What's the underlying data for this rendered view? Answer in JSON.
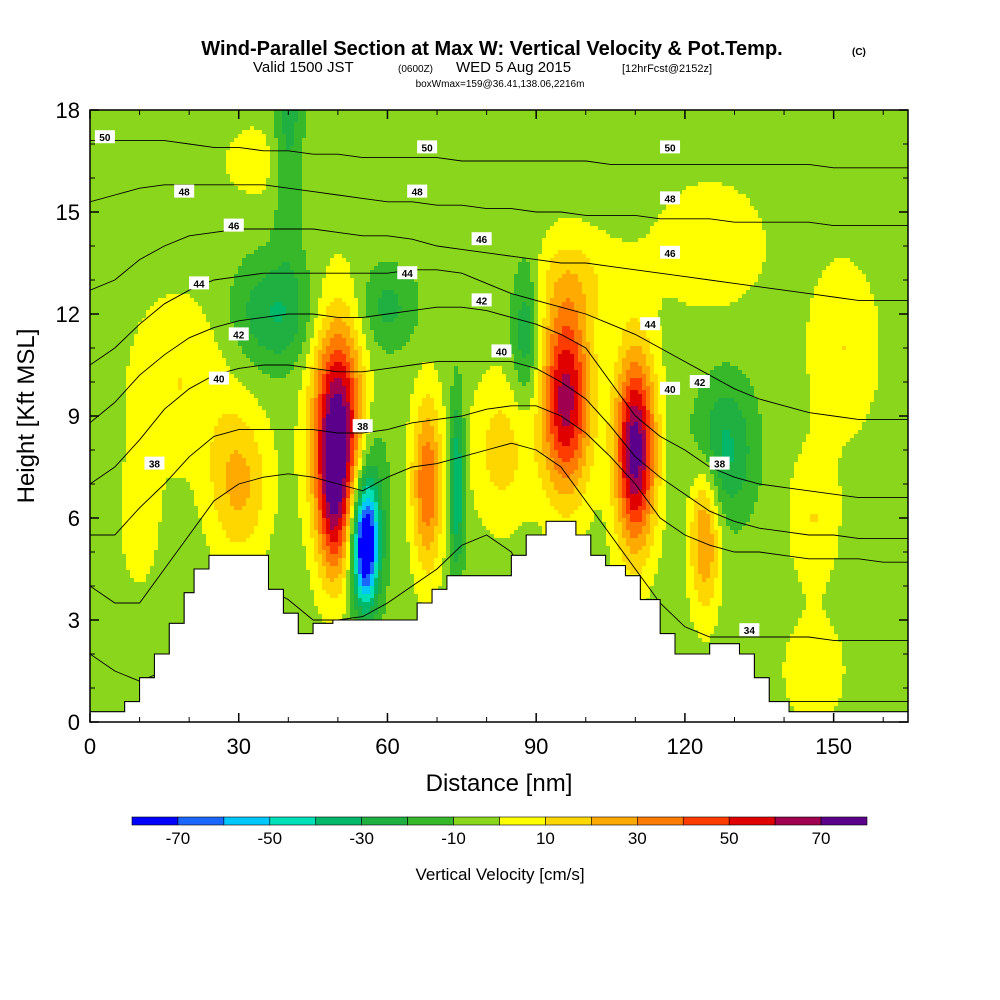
{
  "title": {
    "main": "Wind-Parallel Section at Max W: Vertical Velocity & Pot.Temp.",
    "copyright": "(C)",
    "valid_prefix": "Valid 1500 JST",
    "utc": "(0600Z)",
    "valid_date": "WED 5 Aug 2015",
    "forecast": "[12hrFcst@2152z]",
    "box": "boxWmax=159@36.41,138.06,2216m"
  },
  "chart_data": {
    "type": "heatmap",
    "xlabel": "Distance [nm]",
    "ylabel": "Height [Kft MSL]",
    "xlim": [
      0,
      165
    ],
    "ylim": [
      0,
      18
    ],
    "x_ticks": [
      "0",
      "30",
      "60",
      "90",
      "120",
      "150"
    ],
    "x_tick_values": [
      0,
      30,
      60,
      90,
      120,
      150
    ],
    "y_ticks": [
      "0",
      "3",
      "6",
      "9",
      "12",
      "15",
      "18"
    ],
    "y_tick_values": [
      0,
      3,
      6,
      9,
      12,
      15,
      18
    ],
    "background_value": -5,
    "colorbar": {
      "title": "Vertical Velocity [cm/s]",
      "bins": [
        -80,
        -70,
        -60,
        -50,
        -40,
        -30,
        -20,
        -10,
        0,
        10,
        20,
        30,
        40,
        50,
        60,
        70,
        80
      ],
      "colors": [
        "#0000ff",
        "#1a66ff",
        "#00c8ff",
        "#00e0b8",
        "#00b86a",
        "#1fb041",
        "#36b82a",
        "#8ad61c",
        "#ffff00",
        "#ffd700",
        "#ffaa00",
        "#ff7a00",
        "#ff3c00",
        "#e00000",
        "#a00050",
        "#5a008a"
      ],
      "labels": [
        "-70",
        "-50",
        "-30",
        "-10",
        "10",
        "30",
        "50",
        "70"
      ],
      "label_values": [
        -70,
        -50,
        -30,
        -10,
        10,
        30,
        50,
        70
      ]
    },
    "cells": [
      {
        "x": 50,
        "y": 8.5,
        "sx": 5,
        "sy": 3.2,
        "a": 85
      },
      {
        "x": 49,
        "y": 6.2,
        "sx": 3,
        "sy": 2.2,
        "a": 30
      },
      {
        "x": 55.5,
        "y": 5.2,
        "sx": 2.6,
        "sy": 1.8,
        "a": -78
      },
      {
        "x": 56,
        "y": 6.5,
        "sx": 4,
        "sy": 2.8,
        "a": -20
      },
      {
        "x": 68,
        "y": 7,
        "sx": 3,
        "sy": 2.5,
        "a": 45
      },
      {
        "x": 74,
        "y": 7,
        "sx": 1.5,
        "sy": 2.5,
        "a": -38
      },
      {
        "x": 96,
        "y": 9.5,
        "sx": 5,
        "sy": 2.8,
        "a": 70
      },
      {
        "x": 110,
        "y": 8,
        "sx": 4,
        "sy": 2.8,
        "a": 82
      },
      {
        "x": 124,
        "y": 5.5,
        "sx": 3,
        "sy": 2.2,
        "a": 38
      },
      {
        "x": 30,
        "y": 7,
        "sx": 6,
        "sy": 2.2,
        "a": 28
      },
      {
        "x": 37,
        "y": 12,
        "sx": 8,
        "sy": 1.6,
        "a": -25
      },
      {
        "x": 60,
        "y": 12.2,
        "sx": 6,
        "sy": 1.2,
        "a": -18
      },
      {
        "x": 83,
        "y": 8,
        "sx": 6,
        "sy": 2.2,
        "a": 20
      },
      {
        "x": 88,
        "y": 11.5,
        "sx": 3,
        "sy": 2.2,
        "a": -25
      },
      {
        "x": 128,
        "y": 8,
        "sx": 6,
        "sy": 2,
        "a": -28
      },
      {
        "x": 146,
        "y": 6,
        "sx": 5,
        "sy": 2,
        "a": 15
      },
      {
        "x": 152,
        "y": 11,
        "sx": 7,
        "sy": 2.5,
        "a": 15
      },
      {
        "x": 18,
        "y": 10,
        "sx": 10,
        "sy": 2.5,
        "a": 15
      },
      {
        "x": 125,
        "y": 14,
        "sx": 12,
        "sy": 2,
        "a": 12
      },
      {
        "x": 10,
        "y": 6,
        "sx": 4,
        "sy": 2,
        "a": 12
      },
      {
        "x": 40,
        "y": 18,
        "sx": 3,
        "sy": 4,
        "a": -22
      },
      {
        "x": 98,
        "y": 13,
        "sx": 10,
        "sy": 1.5,
        "a": 14
      },
      {
        "x": 146,
        "y": 1.5,
        "sx": 6,
        "sy": 1.5,
        "a": 14
      },
      {
        "x": 34,
        "y": 16.5,
        "sx": 8,
        "sy": 1.2,
        "a": 10
      }
    ],
    "terrain": [
      [
        0,
        0.3
      ],
      [
        7,
        0.3
      ],
      [
        7,
        0.6
      ],
      [
        10,
        0.6
      ],
      [
        10,
        1.3
      ],
      [
        13,
        1.3
      ],
      [
        13,
        2.0
      ],
      [
        16,
        2.0
      ],
      [
        16,
        2.9
      ],
      [
        19,
        2.9
      ],
      [
        19,
        3.8
      ],
      [
        21,
        3.8
      ],
      [
        21,
        4.5
      ],
      [
        24,
        4.5
      ],
      [
        24,
        4.9
      ],
      [
        36,
        4.9
      ],
      [
        36,
        3.9
      ],
      [
        39,
        3.9
      ],
      [
        39,
        3.2
      ],
      [
        42,
        3.2
      ],
      [
        42,
        2.6
      ],
      [
        45,
        2.6
      ],
      [
        45,
        2.9
      ],
      [
        49,
        2.9
      ],
      [
        49,
        3.0
      ],
      [
        66,
        3.0
      ],
      [
        66,
        3.5
      ],
      [
        69,
        3.5
      ],
      [
        69,
        3.9
      ],
      [
        72,
        3.9
      ],
      [
        72,
        4.3
      ],
      [
        85,
        4.3
      ],
      [
        85,
        4.9
      ],
      [
        88,
        4.9
      ],
      [
        88,
        5.5
      ],
      [
        92,
        5.5
      ],
      [
        92,
        5.9
      ],
      [
        98,
        5.9
      ],
      [
        98,
        5.5
      ],
      [
        101,
        5.5
      ],
      [
        101,
        4.9
      ],
      [
        104,
        4.9
      ],
      [
        104,
        4.6
      ],
      [
        108,
        4.6
      ],
      [
        108,
        4.3
      ],
      [
        111,
        4.3
      ],
      [
        111,
        3.6
      ],
      [
        115,
        3.6
      ],
      [
        115,
        2.6
      ],
      [
        118,
        2.6
      ],
      [
        118,
        2.0
      ],
      [
        125,
        2.0
      ],
      [
        125,
        2.3
      ],
      [
        131,
        2.3
      ],
      [
        131,
        2.0
      ],
      [
        134,
        2.0
      ],
      [
        134,
        1.3
      ],
      [
        137,
        1.3
      ],
      [
        137,
        0.6
      ],
      [
        141,
        0.6
      ],
      [
        141,
        0.3
      ],
      [
        165,
        0.3
      ]
    ],
    "isentropes": [
      {
        "values": [
          2.0,
          1.5,
          1.2,
          1.5,
          2.5,
          4.0,
          4.3,
          4.0,
          3.6,
          3.0,
          3.0,
          3.1,
          3.5,
          4.0,
          4.5,
          5.2,
          5.5,
          5.0,
          3.5,
          2.5,
          2.3,
          1.5,
          1.0,
          0.7,
          0.6,
          0.6,
          0.6,
          0.6,
          0.6,
          0.6,
          0.6,
          0.6,
          0.6,
          0.6
        ]
      },
      {
        "values": [
          4.0,
          3.5,
          3.5,
          4.5,
          5.5,
          6.5,
          7.0,
          7.2,
          7.3,
          7.2,
          7.0,
          6.8,
          7.2,
          7.5,
          7.6,
          7.8,
          8.0,
          8.2,
          8.0,
          7.5,
          6.5,
          5.5,
          4.5,
          3.5,
          2.8,
          2.5,
          2.5,
          2.5,
          2.5,
          2.5,
          2.4,
          2.4,
          2.4,
          2.4
        ],
        "label": "34",
        "lx": 133,
        "ly": 2.7
      },
      {
        "values": [
          5.5,
          5.5,
          6.3,
          7.0,
          7.8,
          8.4,
          8.6,
          8.6,
          8.6,
          8.6,
          8.5,
          8.5,
          8.6,
          8.8,
          8.9,
          9.0,
          9.2,
          9.3,
          9.3,
          9.0,
          8.5,
          7.8,
          7.0,
          6.0,
          5.5,
          5.2,
          5.0,
          5.0,
          4.9,
          4.8,
          4.8,
          4.8,
          4.7,
          4.7
        ],
        "label": "38",
        "lx": 13,
        "ly": 7.6
      },
      {
        "values": [
          7.0,
          7.5,
          8.3,
          9.2,
          9.8,
          10.2,
          10.4,
          10.5,
          10.5,
          10.4,
          10.3,
          10.3,
          10.4,
          10.5,
          10.6,
          10.6,
          10.6,
          10.6,
          10.4,
          10.0,
          9.5,
          8.7,
          7.8,
          7.2,
          6.7,
          6.2,
          5.9,
          5.7,
          5.6,
          5.5,
          5.5,
          5.4,
          5.4,
          5.4
        ],
        "label": "40",
        "lx": 26,
        "ly": 10.1
      },
      {
        "values": [
          8.8,
          9.4,
          10.2,
          10.8,
          11.3,
          11.6,
          11.8,
          11.9,
          12.0,
          12.0,
          11.9,
          11.9,
          12.0,
          12.1,
          12.2,
          12.2,
          12.1,
          11.9,
          11.7,
          11.4,
          11.0,
          10.0,
          9.0,
          8.4,
          8.0,
          7.5,
          7.2,
          7.0,
          6.9,
          6.8,
          6.7,
          6.6,
          6.6,
          6.6
        ],
        "label": "42",
        "lx": 30,
        "ly": 11.4
      },
      {
        "values": [
          10.5,
          11.0,
          11.7,
          12.3,
          12.7,
          13.0,
          13.1,
          13.2,
          13.2,
          13.2,
          13.2,
          13.2,
          13.2,
          13.3,
          13.3,
          13.2,
          12.9,
          12.6,
          12.4,
          12.2,
          12.0,
          11.7,
          11.4,
          11.0,
          10.6,
          10.2,
          9.8,
          9.5,
          9.3,
          9.1,
          9.0,
          8.9,
          8.9,
          8.9
        ],
        "label": "44",
        "lx": 22,
        "ly": 12.9
      },
      {
        "values": [
          12.7,
          13.0,
          13.6,
          14.0,
          14.3,
          14.4,
          14.5,
          14.5,
          14.5,
          14.5,
          14.4,
          14.3,
          14.3,
          14.2,
          14.0,
          13.9,
          13.8,
          13.7,
          13.6,
          13.5,
          13.5,
          13.4,
          13.3,
          13.2,
          13.1,
          13.0,
          12.9,
          12.8,
          12.7,
          12.6,
          12.5,
          12.4,
          12.4,
          12.4
        ],
        "label": "46",
        "lx": 29,
        "ly": 14.6
      },
      {
        "values": [
          15.3,
          15.5,
          15.7,
          15.8,
          15.8,
          15.8,
          15.8,
          15.8,
          15.7,
          15.6,
          15.5,
          15.4,
          15.3,
          15.3,
          15.2,
          15.2,
          15.1,
          15.1,
          15.0,
          15.0,
          14.9,
          14.9,
          14.9,
          14.8,
          14.8,
          14.8,
          14.7,
          14.7,
          14.7,
          14.7,
          14.6,
          14.6,
          14.6,
          14.6
        ],
        "label": "48",
        "lx": 19,
        "ly": 15.6
      },
      {
        "values": [
          17.1,
          17.1,
          17.1,
          17.1,
          17.0,
          16.9,
          16.9,
          16.8,
          16.8,
          16.7,
          16.7,
          16.6,
          16.6,
          16.6,
          16.6,
          16.5,
          16.5,
          16.5,
          16.5,
          16.5,
          16.5,
          16.4,
          16.4,
          16.4,
          16.4,
          16.4,
          16.4,
          16.4,
          16.4,
          16.4,
          16.3,
          16.3,
          16.3,
          16.3
        ],
        "label": "50",
        "lx": 3,
        "ly": 17.2
      }
    ],
    "extra_labels": [
      {
        "text": "50",
        "x": 68,
        "y": 16.9
      },
      {
        "text": "50",
        "x": 117,
        "y": 16.9
      },
      {
        "text": "48",
        "x": 66,
        "y": 15.6
      },
      {
        "text": "48",
        "x": 117,
        "y": 15.4
      },
      {
        "text": "46",
        "x": 79,
        "y": 14.2
      },
      {
        "text": "46",
        "x": 117,
        "y": 13.8
      },
      {
        "text": "44",
        "x": 64,
        "y": 13.2
      },
      {
        "text": "44",
        "x": 113,
        "y": 11.7
      },
      {
        "text": "42",
        "x": 79,
        "y": 12.4
      },
      {
        "text": "42",
        "x": 123,
        "y": 10.0
      },
      {
        "text": "40",
        "x": 83,
        "y": 10.9
      },
      {
        "text": "40",
        "x": 117,
        "y": 9.8
      },
      {
        "text": "38",
        "x": 55,
        "y": 8.7
      },
      {
        "text": "38",
        "x": 127,
        "y": 7.6
      }
    ]
  }
}
